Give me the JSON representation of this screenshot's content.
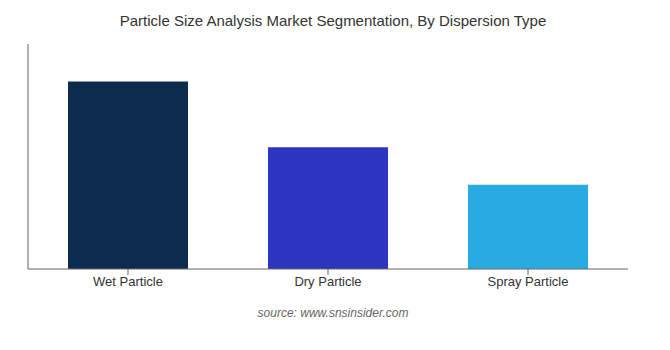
{
  "chart_data": {
    "type": "bar",
    "title": "Particle Size Analysis Market Segmentation, By Dispersion Type",
    "categories": [
      "Wet Particle",
      "Dry Particle",
      "Spray Particle"
    ],
    "values": [
      100,
      65,
      45
    ],
    "colors": [
      "#0d2b4e",
      "#2d35c0",
      "#29abe2"
    ],
    "ylim": [
      0,
      120
    ],
    "yticks": [],
    "grid": false,
    "tick_labels": "x",
    "annotations": [
      "source: www.snsinsider.com"
    ]
  }
}
